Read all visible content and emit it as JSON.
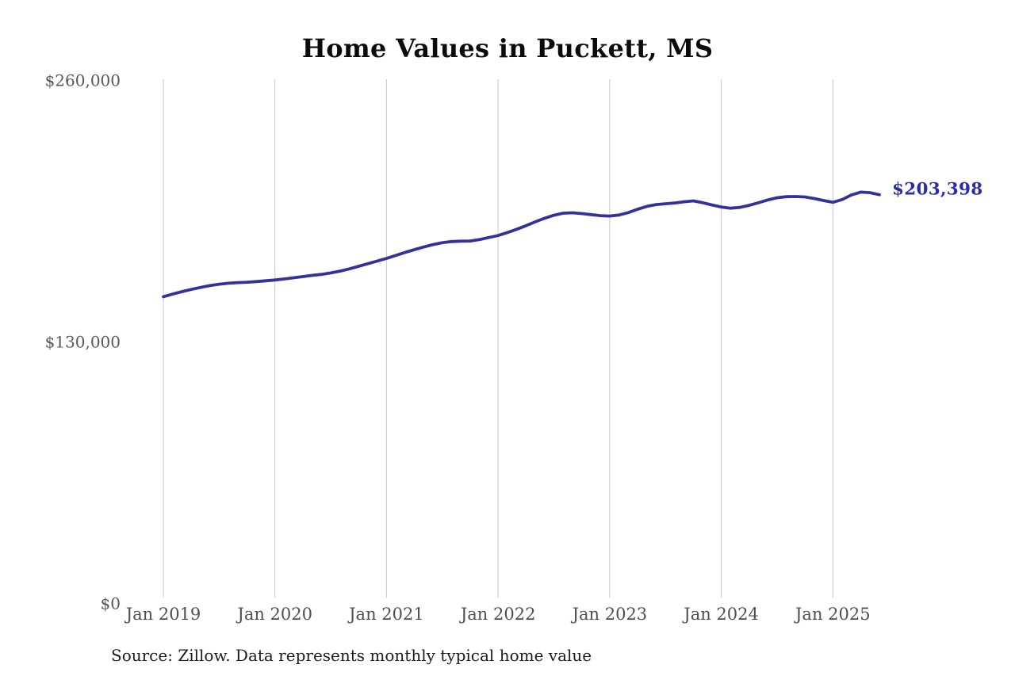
{
  "title": "Home Values in Puckett, MS",
  "source_note": "Source: Zillow. Data represents monthly typical home value",
  "colors": {
    "background": "#ffffff",
    "line": "#36309b",
    "last_value_label": "#2e2ca1",
    "gridline": "#c9c9c9",
    "x_tick_label": "#4f4f4f",
    "y_tick_label": "#585858",
    "title": "#0b0b0b",
    "source": "#1c1c1c"
  },
  "chart_data": {
    "type": "line",
    "title": "Home Values in Puckett, MS",
    "xlabel": "",
    "ylabel": "",
    "x_start": "2019-01",
    "x_end": "2025-06",
    "frequency": "monthly",
    "x_tick_labels": [
      "Jan 2019",
      "Jan 2020",
      "Jan 2021",
      "Jan 2022",
      "Jan 2023",
      "Jan 2024",
      "Jan 2025"
    ],
    "y_ticks": [
      0,
      130000,
      260000
    ],
    "y_tick_labels": [
      "$0",
      "$130,000",
      "$260,000"
    ],
    "ylim": [
      0,
      260000
    ],
    "grid": "vertical-year-gridlines-only",
    "legend_position": "none",
    "last_value": 203398,
    "last_value_label": "$203,398",
    "source": "Zillow",
    "series": [
      {
        "name": "Monthly typical home value (USD)",
        "values": [
          152700,
          154000,
          155200,
          156300,
          157300,
          158200,
          158900,
          159400,
          159700,
          159900,
          160200,
          160600,
          161000,
          161500,
          162100,
          162700,
          163300,
          163800,
          164500,
          165400,
          166500,
          167800,
          169100,
          170400,
          171700,
          173200,
          174700,
          176100,
          177400,
          178600,
          179500,
          180100,
          180300,
          180400,
          181100,
          182100,
          183100,
          184600,
          186200,
          188000,
          189900,
          191700,
          193200,
          194200,
          194400,
          194000,
          193500,
          193000,
          192800,
          193300,
          194500,
          196200,
          197600,
          198500,
          198900,
          199300,
          199900,
          200300,
          199400,
          198300,
          197300,
          196700,
          197100,
          198100,
          199400,
          200800,
          201900,
          202400,
          202500,
          202300,
          201500,
          200500,
          199600,
          201000,
          203300,
          204700,
          204400,
          203398
        ]
      }
    ]
  }
}
